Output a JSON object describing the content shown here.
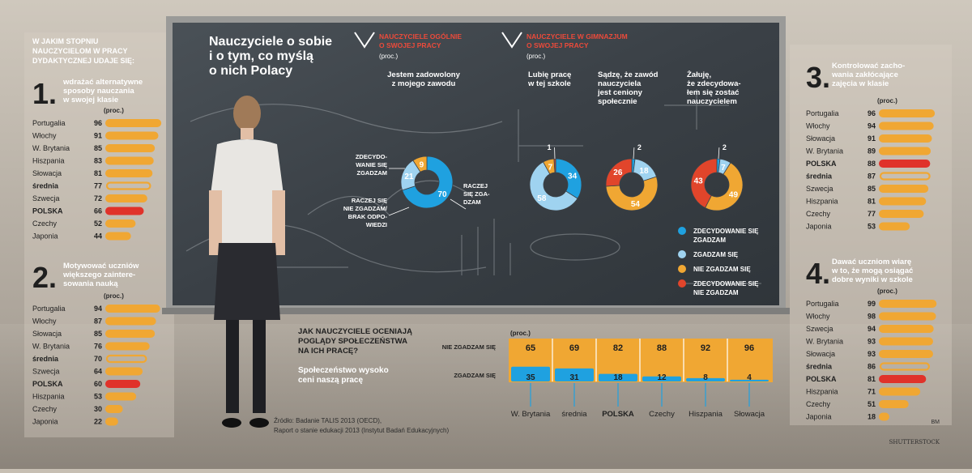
{
  "header": {
    "question": "W JAKIM STOPNIU NAUCZYCIELOM W PRACY DYDAKTYCZNEJ UDAJE SIĘ:",
    "title_lines": [
      "Nauczyciele o sobie",
      "i o tym, co myślą",
      "o nich Polacy"
    ],
    "proc": "(proc.)"
  },
  "panels": [
    {
      "number": "1.",
      "title_lines": [
        "wdrażać alternatywne",
        "sposoby nauczania",
        "w swojej klasie"
      ],
      "rows": [
        {
          "country": "Portugalia",
          "value": 96,
          "style": "normal"
        },
        {
          "country": "Włochy",
          "value": 91,
          "style": "normal"
        },
        {
          "country": "W. Brytania",
          "value": 85,
          "style": "normal"
        },
        {
          "country": "Hiszpania",
          "value": 83,
          "style": "normal"
        },
        {
          "country": "Słowacja",
          "value": 81,
          "style": "normal"
        },
        {
          "country": "średnia",
          "value": 77,
          "style": "avg"
        },
        {
          "country": "Szwecja",
          "value": 72,
          "style": "normal"
        },
        {
          "country": "POLSKA",
          "value": 66,
          "style": "pl"
        },
        {
          "country": "Czechy",
          "value": 52,
          "style": "normal"
        },
        {
          "country": "Japonia",
          "value": 44,
          "style": "normal"
        }
      ]
    },
    {
      "number": "2.",
      "title_lines": [
        "Motywować uczniów",
        "większego zaintere-",
        "sowania nauką"
      ],
      "rows": [
        {
          "country": "Portugalia",
          "value": 94,
          "style": "normal"
        },
        {
          "country": "Włochy",
          "value": 87,
          "style": "normal"
        },
        {
          "country": "Słowacja",
          "value": 85,
          "style": "normal"
        },
        {
          "country": "W. Brytania",
          "value": 76,
          "style": "normal"
        },
        {
          "country": "średnia",
          "value": 70,
          "style": "avg"
        },
        {
          "country": "Szwecja",
          "value": 64,
          "style": "normal"
        },
        {
          "country": "POLSKA",
          "value": 60,
          "style": "pl"
        },
        {
          "country": "Hiszpania",
          "value": 53,
          "style": "normal"
        },
        {
          "country": "Czechy",
          "value": 30,
          "style": "normal"
        },
        {
          "country": "Japonia",
          "value": 22,
          "style": "normal"
        }
      ]
    },
    {
      "number": "3.",
      "title_lines": [
        "Kontrolować zacho-",
        "wania zakłócające",
        "zajęcia w klasie"
      ],
      "rows": [
        {
          "country": "Portugalia",
          "value": 96,
          "style": "normal"
        },
        {
          "country": "Włochy",
          "value": 94,
          "style": "normal"
        },
        {
          "country": "Słowacja",
          "value": 91,
          "style": "normal"
        },
        {
          "country": "W. Brytania",
          "value": 89,
          "style": "normal"
        },
        {
          "country": "POLSKA",
          "value": 88,
          "style": "pl"
        },
        {
          "country": "średnia",
          "value": 87,
          "style": "avg"
        },
        {
          "country": "Szwecja",
          "value": 85,
          "style": "normal"
        },
        {
          "country": "Hiszpania",
          "value": 81,
          "style": "normal"
        },
        {
          "country": "Czechy",
          "value": 77,
          "style": "normal"
        },
        {
          "country": "Japonia",
          "value": 53,
          "style": "normal"
        }
      ]
    },
    {
      "number": "4.",
      "title_lines": [
        "Dawać uczniom wiarę",
        "w to, że mogą osiągać",
        "dobre wyniki w szkole"
      ],
      "rows": [
        {
          "country": "Portugalia",
          "value": 99,
          "style": "normal"
        },
        {
          "country": "Włochy",
          "value": 98,
          "style": "normal"
        },
        {
          "country": "Szwecja",
          "value": 94,
          "style": "normal"
        },
        {
          "country": "W. Brytania",
          "value": 93,
          "style": "normal"
        },
        {
          "country": "Słowacja",
          "value": 93,
          "style": "normal"
        },
        {
          "country": "średnia",
          "value": 86,
          "style": "avg"
        },
        {
          "country": "POLSKA",
          "value": 81,
          "style": "pl"
        },
        {
          "country": "Hiszpania",
          "value": 71,
          "style": "normal"
        },
        {
          "country": "Czechy",
          "value": 51,
          "style": "normal"
        },
        {
          "country": "Japonia",
          "value": 18,
          "style": "normal"
        }
      ]
    }
  ],
  "sections": {
    "general": [
      "NAUCZYCIELE OGÓLNIE",
      "O SWOJEJ PRACY"
    ],
    "gym": [
      "NAUCZYCIELE W GIMNAZJUM",
      "O SWOJEJ PRACY"
    ]
  },
  "donuts": [
    {
      "title_lines": [
        "Jestem zadowolony",
        "z mojego zawodu"
      ],
      "values": [
        70,
        21,
        9,
        0
      ],
      "callouts": [
        {
          "label_lines": [
            "ZDECYDO-",
            "WANIE SIĘ",
            "ZGADZAM"
          ]
        },
        {
          "label_lines": [
            "RACZEJ",
            "SIĘ ZGA-",
            "DZAM"
          ]
        },
        {
          "label_lines": [
            "RACZEJ SIĘ",
            "NIE ZGADZAM/",
            "BRAK ODPO-",
            "WIEDZI"
          ]
        }
      ]
    },
    {
      "title_lines": [
        "Lubię pracę",
        "w tej szkole"
      ],
      "values": [
        34,
        58,
        7,
        1
      ]
    },
    {
      "title_lines": [
        "Sądzę, że zawód",
        "nauczyciela",
        "jest ceniony",
        "społecznie"
      ],
      "values": [
        2,
        18,
        54,
        26
      ]
    },
    {
      "title_lines": [
        "Żałuję,",
        "że zdecydowa-",
        "łem się zostać",
        "nauczycielem"
      ],
      "values": [
        2,
        7,
        49,
        43
      ]
    }
  ],
  "legend": [
    {
      "lines": [
        "ZDECYDOWANIE SIĘ",
        "ZGADZAM"
      ],
      "color": "#1fa1e0"
    },
    {
      "lines": [
        "ZGADZAM SIĘ"
      ],
      "color": "#9fd3f0"
    },
    {
      "lines": [
        "NIE ZGADZAM SIĘ"
      ],
      "color": "#f0a733"
    },
    {
      "lines": [
        "ZDECYDOWANIE SIĘ",
        "NIE ZGADZAM"
      ],
      "color": "#e1452b"
    }
  ],
  "society": {
    "title_lines": [
      "JAK NAUCZYCIELE OCENIAJĄ",
      "POGLĄDY SPOŁECZEŃSTWA",
      "NA ICH PRACĘ?"
    ],
    "subtitle_lines": [
      "Społeczeństwo wysoko",
      "ceni naszą pracę"
    ],
    "row_labels": [
      "NIE ZGADZAM SIĘ",
      "ZGADZAM SIĘ"
    ],
    "countries": [
      "W. Brytania",
      "średnia",
      "POLSKA",
      "Czechy",
      "Hiszpania",
      "Słowacja"
    ],
    "disagree": [
      65,
      69,
      82,
      88,
      92,
      96
    ],
    "agree": [
      35,
      31,
      18,
      12,
      8,
      4
    ]
  },
  "source_lines": [
    "Źródło: Badanie TALIS 2013 (OECD),",
    "Raport o stanie edukacji 2013 (Instytut Badań Edukacyjnych)"
  ],
  "credit": "SHUTTERSTOCK",
  "initials": "BM",
  "colors": {
    "orange": "#f0a733",
    "red": "#e0322a",
    "blue": "#1fa1e0",
    "light_blue": "#9fd3f0",
    "dark_red": "#e1452b",
    "board": "#3d4349",
    "frame": "#8f8f8f"
  }
}
